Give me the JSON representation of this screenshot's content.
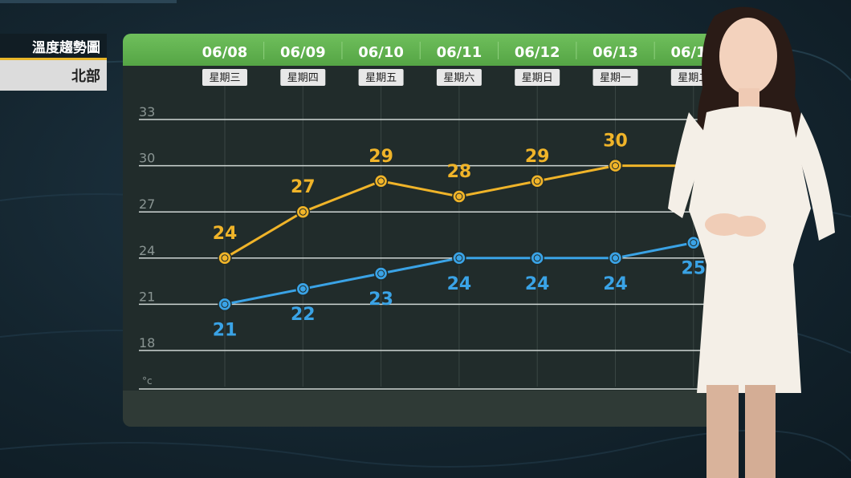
{
  "title": "溫度趨勢圖",
  "region": "北部",
  "unit": "°c",
  "colors": {
    "high": "#f0b429",
    "low": "#3aa3e6",
    "header": "#5fb04e"
  },
  "chart_data": {
    "type": "line",
    "title": "溫度趨勢圖",
    "categories": [
      "06/08",
      "06/09",
      "06/10",
      "06/11",
      "06/12",
      "06/13",
      "06/14"
    ],
    "weekdays": [
      "星期三",
      "星期四",
      "星期五",
      "星期六",
      "星期日",
      "星期一",
      "星期二"
    ],
    "yticks": [
      33,
      30,
      27,
      24,
      21,
      18
    ],
    "ylim": [
      15.5,
      33
    ],
    "ylabel": "°c",
    "grid": true,
    "series": [
      {
        "key": "high",
        "color": "#f0b429",
        "values": [
          24,
          27,
          29,
          28,
          29,
          30,
          30
        ]
      },
      {
        "key": "low",
        "color": "#3aa3e6",
        "values": [
          21,
          22,
          23,
          24,
          24,
          24,
          25
        ]
      }
    ]
  }
}
